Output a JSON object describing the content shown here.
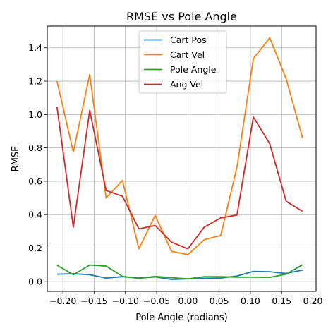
{
  "chart_data": {
    "type": "line",
    "title": "RMSE vs Pole Angle",
    "xlabel": "Pole Angle (radians)",
    "ylabel": "RMSE",
    "xlim": [
      -0.225,
      0.205
    ],
    "ylim": [
      -0.06,
      1.53
    ],
    "x_ticks": [
      -0.2,
      -0.15,
      -0.1,
      -0.05,
      0.0,
      0.05,
      0.1,
      0.15,
      0.2
    ],
    "x_tick_labels": [
      "−0.20",
      "−0.15",
      "−0.10",
      "−0.05",
      "0.00",
      "0.05",
      "0.10",
      "0.15",
      "0.20"
    ],
    "y_ticks": [
      0.0,
      0.2,
      0.4,
      0.6,
      0.8,
      1.0,
      1.2,
      1.4
    ],
    "y_tick_labels": [
      "0.0",
      "0.2",
      "0.4",
      "0.6",
      "0.8",
      "1.0",
      "1.2",
      "1.4"
    ],
    "grid": true,
    "legend_position": "top-center",
    "x": [
      -0.2094,
      -0.1833,
      -0.1571,
      -0.1309,
      -0.1047,
      -0.0785,
      -0.0524,
      -0.0262,
      0.0,
      0.0262,
      0.0524,
      0.0785,
      0.1047,
      0.1309,
      0.1571,
      0.1833
    ],
    "series": [
      {
        "name": "Cart Pos",
        "color": "#1f77b4",
        "values": [
          0.043,
          0.046,
          0.04,
          0.02,
          0.028,
          0.02,
          0.027,
          0.012,
          0.015,
          0.018,
          0.02,
          0.032,
          0.06,
          0.058,
          0.048,
          0.068
        ]
      },
      {
        "name": "Cart Vel",
        "color": "#ff7f0e",
        "values": [
          1.2,
          0.775,
          1.24,
          0.5,
          0.605,
          0.195,
          0.395,
          0.18,
          0.16,
          0.25,
          0.275,
          0.685,
          1.335,
          1.46,
          1.215,
          0.86
        ]
      },
      {
        "name": "Pole Angle",
        "color": "#2ca02c",
        "values": [
          0.097,
          0.04,
          0.098,
          0.092,
          0.03,
          0.018,
          0.03,
          0.022,
          0.015,
          0.028,
          0.028,
          0.025,
          0.025,
          0.024,
          0.043,
          0.1
        ]
      },
      {
        "name": "Ang Vel",
        "color": "#d62728",
        "values": [
          1.045,
          0.325,
          1.025,
          0.545,
          0.51,
          0.315,
          0.335,
          0.235,
          0.195,
          0.325,
          0.38,
          0.398,
          0.985,
          0.825,
          0.48,
          0.42
        ]
      }
    ]
  }
}
